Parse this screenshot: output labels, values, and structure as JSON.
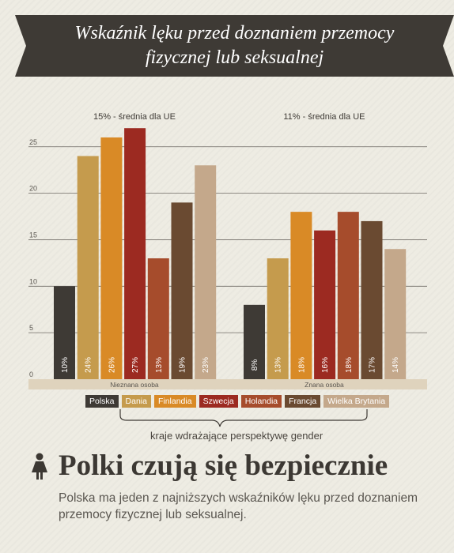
{
  "header": {
    "title_line1": "Wskaźnik lęku przed doznaniem przemocy",
    "title_line2": "fizycznej lub seksualnej"
  },
  "chart_data": {
    "type": "bar",
    "groups": [
      "Nieznana osoba",
      "Znana osoba"
    ],
    "group_averages": [
      "15% - średnia dla UE",
      "11% - średnia dla UE"
    ],
    "series": [
      {
        "name": "Polska",
        "color": "#3e3a35",
        "values": [
          10,
          8
        ]
      },
      {
        "name": "Dania",
        "color": "#c59b4d",
        "values": [
          24,
          13
        ]
      },
      {
        "name": "Finlandia",
        "color": "#d98a26",
        "values": [
          26,
          18
        ]
      },
      {
        "name": "Szwecja",
        "color": "#9c2a21",
        "values": [
          27,
          16
        ]
      },
      {
        "name": "Holandia",
        "color": "#a64c2c",
        "values": [
          13,
          18
        ]
      },
      {
        "name": "Francja",
        "color": "#6a4a31",
        "values": [
          19,
          17
        ]
      },
      {
        "name": "Wielka Brytania",
        "color": "#c4a88b",
        "values": [
          23,
          14
        ]
      }
    ],
    "value_labels": [
      [
        "10%",
        "24%",
        "26%",
        "27%",
        "13%",
        "19%",
        "23%"
      ],
      [
        "8%",
        "13%",
        "18%",
        "16%",
        "18%",
        "17%",
        "14%"
      ]
    ],
    "y_ticks": [
      "0",
      "5",
      "10",
      "15",
      "20",
      "25"
    ],
    "ylim": [
      0,
      27.5
    ],
    "grid": true,
    "legend_position": "bottom"
  },
  "legend_caption": "kraje wdrażające perspektywę gender",
  "headline": {
    "title": "Polki czują się bezpiecznie",
    "icon": "woman-icon",
    "subtitle": "Polska ma jeden z najniższych wskaźników lęku przed doznaniem przemocy fizycznej lub seksualnej."
  }
}
